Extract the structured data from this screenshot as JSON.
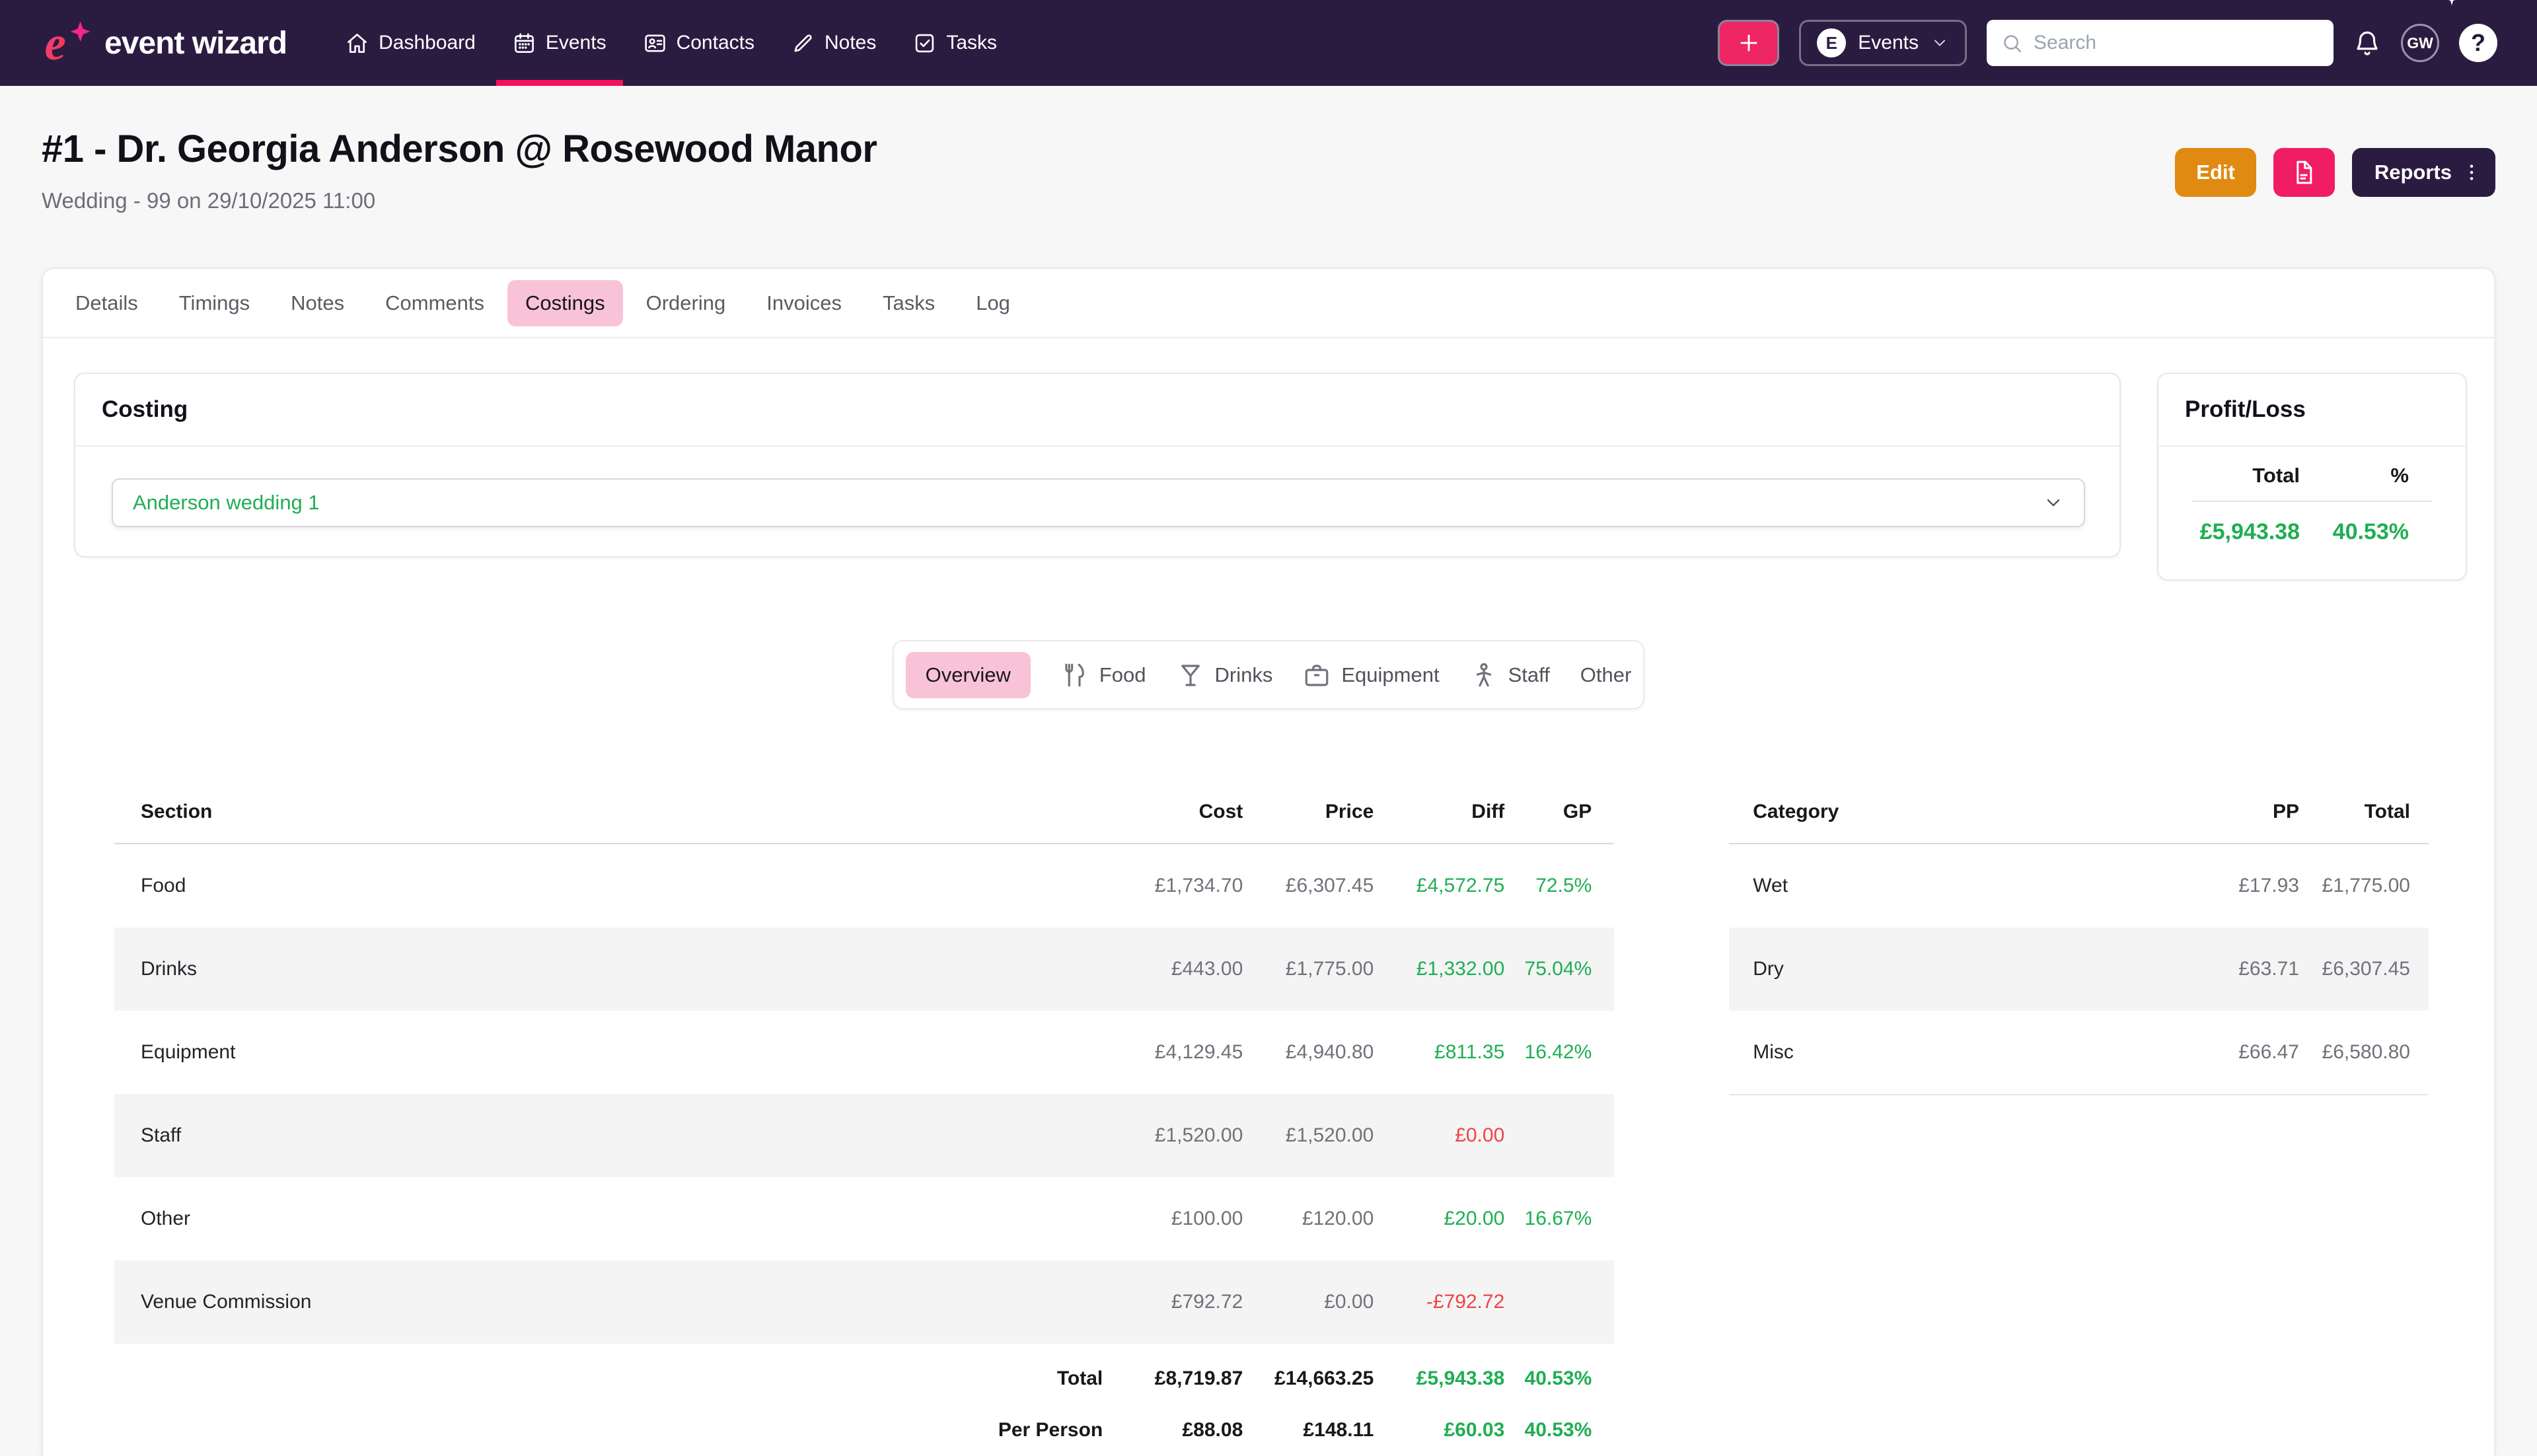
{
  "colors": {
    "accent_pink": "#f11d64",
    "pill_pink": "#f9c3d7",
    "nav_bg": "#2a1c41",
    "positive_green": "#1fae53",
    "negative_red": "#ef4444",
    "edit_orange": "#e08a12"
  },
  "nav": {
    "logo_text": "event wizard",
    "logo_mark": "e",
    "items": [
      {
        "label": "Dashboard",
        "icon": "home-icon",
        "active": false
      },
      {
        "label": "Events",
        "icon": "calendar-icon",
        "active": true
      },
      {
        "label": "Contacts",
        "icon": "contacts-icon",
        "active": false
      },
      {
        "label": "Notes",
        "icon": "pen-icon",
        "active": false
      },
      {
        "label": "Tasks",
        "icon": "tasks-icon",
        "active": false
      }
    ],
    "context_switcher": {
      "badge": "E",
      "label": "Events"
    },
    "search_placeholder": "Search",
    "avatar_initials": "GW",
    "help_label": "?"
  },
  "header": {
    "title": "#1 - Dr. Georgia Anderson @ Rosewood Manor",
    "subtitle": "Wedding - 99 on 29/10/2025 11:00",
    "edit_label": "Edit",
    "reports_label": "Reports"
  },
  "tabs": {
    "items": [
      "Details",
      "Timings",
      "Notes",
      "Comments",
      "Costings",
      "Ordering",
      "Invoices",
      "Tasks",
      "Log"
    ],
    "active": "Costings"
  },
  "costing": {
    "title": "Costing",
    "selected_option": "Anderson wedding 1"
  },
  "profit_loss": {
    "title": "Profit/Loss",
    "col_total": "Total",
    "col_pct": "%",
    "total": "£5,943.38",
    "pct": "40.53%"
  },
  "view_tabs": {
    "items": [
      {
        "label": "Overview",
        "icon": null,
        "active": true
      },
      {
        "label": "Food",
        "icon": "food-icon",
        "active": false
      },
      {
        "label": "Drinks",
        "icon": "drinks-icon",
        "active": false
      },
      {
        "label": "Equipment",
        "icon": "equipment-icon",
        "active": false
      },
      {
        "label": "Staff",
        "icon": "staff-icon",
        "active": false
      },
      {
        "label": "Other",
        "icon": null,
        "active": false
      }
    ]
  },
  "sections_table": {
    "headers": [
      "Section",
      "Cost",
      "Price",
      "Diff",
      "GP"
    ],
    "rows": [
      {
        "section": "Food",
        "cost": "£1,734.70",
        "price": "£6,307.45",
        "diff": "£4,572.75",
        "gp": "72.5%",
        "tone": "positive",
        "striped": false
      },
      {
        "section": "Drinks",
        "cost": "£443.00",
        "price": "£1,775.00",
        "diff": "£1,332.00",
        "gp": "75.04%",
        "tone": "positive",
        "striped": true
      },
      {
        "section": "Equipment",
        "cost": "£4,129.45",
        "price": "£4,940.80",
        "diff": "£811.35",
        "gp": "16.42%",
        "tone": "positive",
        "striped": false
      },
      {
        "section": "Staff",
        "cost": "£1,520.00",
        "price": "£1,520.00",
        "diff": "£0.00",
        "gp": "",
        "tone": "negative",
        "striped": true
      },
      {
        "section": "Other",
        "cost": "£100.00",
        "price": "£120.00",
        "diff": "£20.00",
        "gp": "16.67%",
        "tone": "positive",
        "striped": false
      },
      {
        "section": "Venue Commission",
        "cost": "£792.72",
        "price": "£0.00",
        "diff": "-£792.72",
        "gp": "",
        "tone": "negative",
        "striped": true
      }
    ],
    "footer": [
      {
        "label": "Total",
        "cost": "£8,719.87",
        "price": "£14,663.25",
        "diff": "£5,943.38",
        "gp": "40.53%",
        "tone": "positive"
      },
      {
        "label": "Per Person",
        "cost": "£88.08",
        "price": "£148.11",
        "diff": "£60.03",
        "gp": "40.53%",
        "tone": "positive"
      }
    ]
  },
  "categories_table": {
    "headers": [
      "Category",
      "PP",
      "Total"
    ],
    "rows": [
      {
        "category": "Wet",
        "pp": "£17.93",
        "total": "£1,775.00",
        "striped": false
      },
      {
        "category": "Dry",
        "pp": "£63.71",
        "total": "£6,307.45",
        "striped": true
      },
      {
        "category": "Misc",
        "pp": "£66.47",
        "total": "£6,580.80",
        "striped": false
      }
    ]
  }
}
